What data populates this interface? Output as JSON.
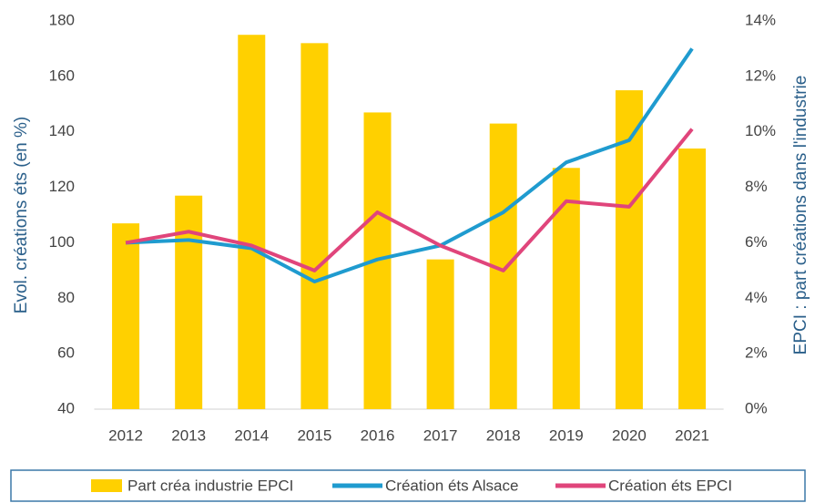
{
  "chart_data": {
    "type": "bar",
    "categories": [
      "2012",
      "2013",
      "2014",
      "2015",
      "2016",
      "2017",
      "2018",
      "2019",
      "2020",
      "2021"
    ],
    "y_label": "Evol. créations éts (en %)",
    "y2_label": "EPCI : part créations dans l'industrie",
    "ylim": [
      40,
      180
    ],
    "yticks": [
      40,
      60,
      80,
      100,
      120,
      140,
      160,
      180
    ],
    "y2lim": [
      0,
      14
    ],
    "y2ticks": [
      {
        "value": 0,
        "label": "0%"
      },
      {
        "value": 2,
        "label": "2%"
      },
      {
        "value": 4,
        "label": "4%"
      },
      {
        "value": 6,
        "label": "6%"
      },
      {
        "value": 8,
        "label": "8%"
      },
      {
        "value": 10,
        "label": "10%"
      },
      {
        "value": 12,
        "label": "12%"
      },
      {
        "value": 14,
        "label": "14%"
      }
    ],
    "series": [
      {
        "name": "Part créa industrie EPCI",
        "type": "bar",
        "axis": "y2",
        "color": "#ffd000",
        "values": [
          6.7,
          7.7,
          13.5,
          13.2,
          10.7,
          5.4,
          10.3,
          8.7,
          11.5,
          9.4
        ]
      },
      {
        "name": "Création éts Alsace",
        "type": "line",
        "color": "#1f9bcf",
        "values": [
          100,
          101,
          98,
          86,
          94,
          99,
          111,
          129,
          137,
          170
        ]
      },
      {
        "name": "Création éts EPCI",
        "type": "line",
        "color": "#e0457b",
        "values": [
          100,
          104,
          99,
          90,
          111,
          99,
          90,
          115,
          113,
          141
        ]
      }
    ]
  }
}
